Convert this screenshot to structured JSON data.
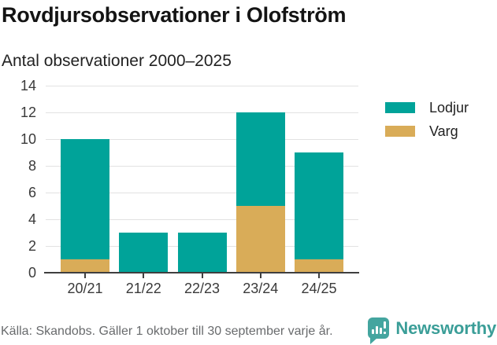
{
  "chart_data": {
    "type": "bar",
    "stacked": true,
    "title": "Rovdjursobservationer i Olofström",
    "subtitle": "Antal observationer 2000–2025",
    "categories": [
      "20/21",
      "21/22",
      "22/23",
      "23/24",
      "24/25"
    ],
    "series": [
      {
        "name": "Lodjur",
        "color": "#00a399",
        "values": [
          9,
          3,
          3,
          7,
          8
        ]
      },
      {
        "name": "Varg",
        "color": "#d9ac58",
        "values": [
          1,
          0,
          0,
          5,
          1
        ]
      }
    ],
    "stack_bottom_to_top": [
      "Varg",
      "Lodjur"
    ],
    "totals": [
      10,
      3,
      3,
      12,
      9
    ],
    "ylim": [
      0,
      14
    ],
    "yticks": [
      0,
      2,
      4,
      6,
      8,
      10,
      12,
      14
    ],
    "grid": true,
    "legend_position": "right"
  },
  "footer": {
    "source": "Källa: Skandobs. Gäller 1 oktober till 30 september varje år.",
    "brand": "Newsworthy"
  }
}
